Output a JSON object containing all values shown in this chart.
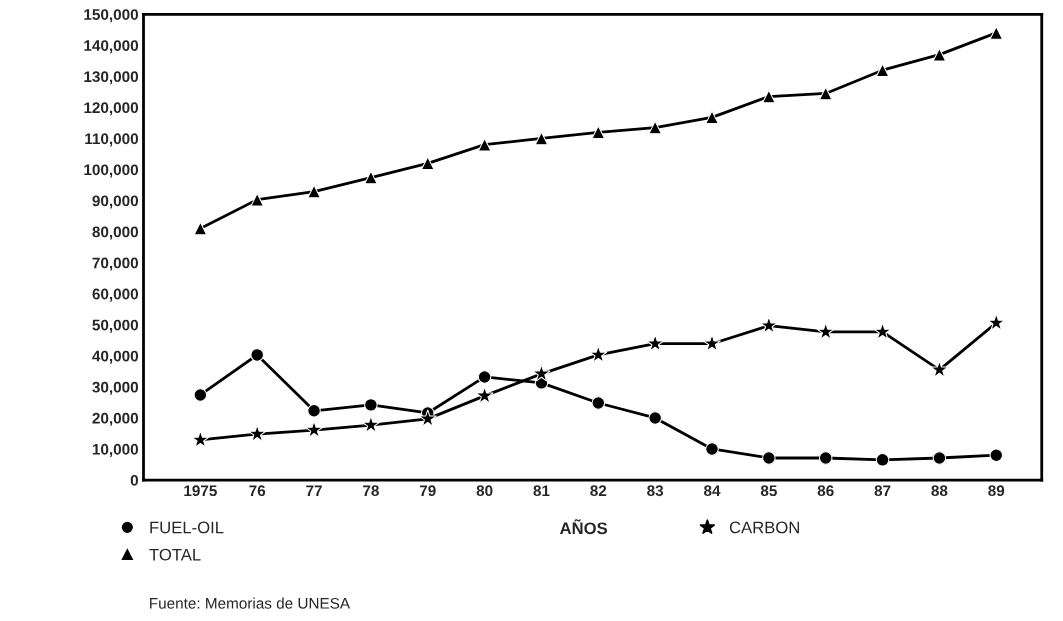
{
  "chart_data": {
    "type": "line",
    "categories": [
      "1975",
      "76",
      "77",
      "78",
      "79",
      "80",
      "81",
      "82",
      "83",
      "84",
      "85",
      "86",
      "87",
      "88",
      "89"
    ],
    "series": [
      {
        "name": "FUEL-OIL",
        "color": "#000000",
        "marker": "circle",
        "values": [
          27400,
          40300,
          22300,
          24200,
          21600,
          33200,
          31300,
          24800,
          20000,
          10000,
          7100,
          7100,
          6500,
          7100,
          8000
        ]
      },
      {
        "name": "TOTAL",
        "color": "#000000",
        "marker": "triangle",
        "values": [
          81000,
          90300,
          92900,
          97400,
          102000,
          108000,
          110000,
          112000,
          113500,
          116800,
          123500,
          124500,
          132000,
          137000,
          144000
        ]
      },
      {
        "name": "CARBON",
        "color": "#000000",
        "marker": "star",
        "values": [
          12900,
          14800,
          16100,
          17700,
          19700,
          27100,
          34200,
          40300,
          43900,
          43900,
          49700,
          47700,
          47700,
          35500,
          50600
        ]
      }
    ],
    "xlabel": "AÑOS",
    "ylim": [
      0,
      150000
    ],
    "yticks": [
      0,
      {
        "value": 10000,
        "label": "10,000"
      },
      {
        "value": 20000,
        "label": "20,000"
      },
      {
        "value": 30000,
        "label": "30,000"
      },
      {
        "value": 40000,
        "label": "40,000"
      },
      {
        "value": 50000,
        "label": "50,000"
      },
      {
        "value": 60000,
        "label": "60,000"
      },
      {
        "value": 70000,
        "label": "70,000"
      },
      {
        "value": 80000,
        "label": "80,000"
      },
      {
        "value": 90000,
        "label": "90,000"
      },
      {
        "value": 100000,
        "label": "100,000"
      },
      {
        "value": 110000,
        "label": "110,000"
      },
      {
        "value": 120000,
        "label": "120,000"
      },
      {
        "value": 130000,
        "label": "130,000"
      },
      {
        "value": 140000,
        "label": "140,000"
      },
      {
        "value": 150000,
        "label": "150,000"
      }
    ],
    "line_style": "solid",
    "grid": false,
    "legend": "bottom",
    "annotations": [
      "Fuente: Memorias de UNESA"
    ]
  }
}
